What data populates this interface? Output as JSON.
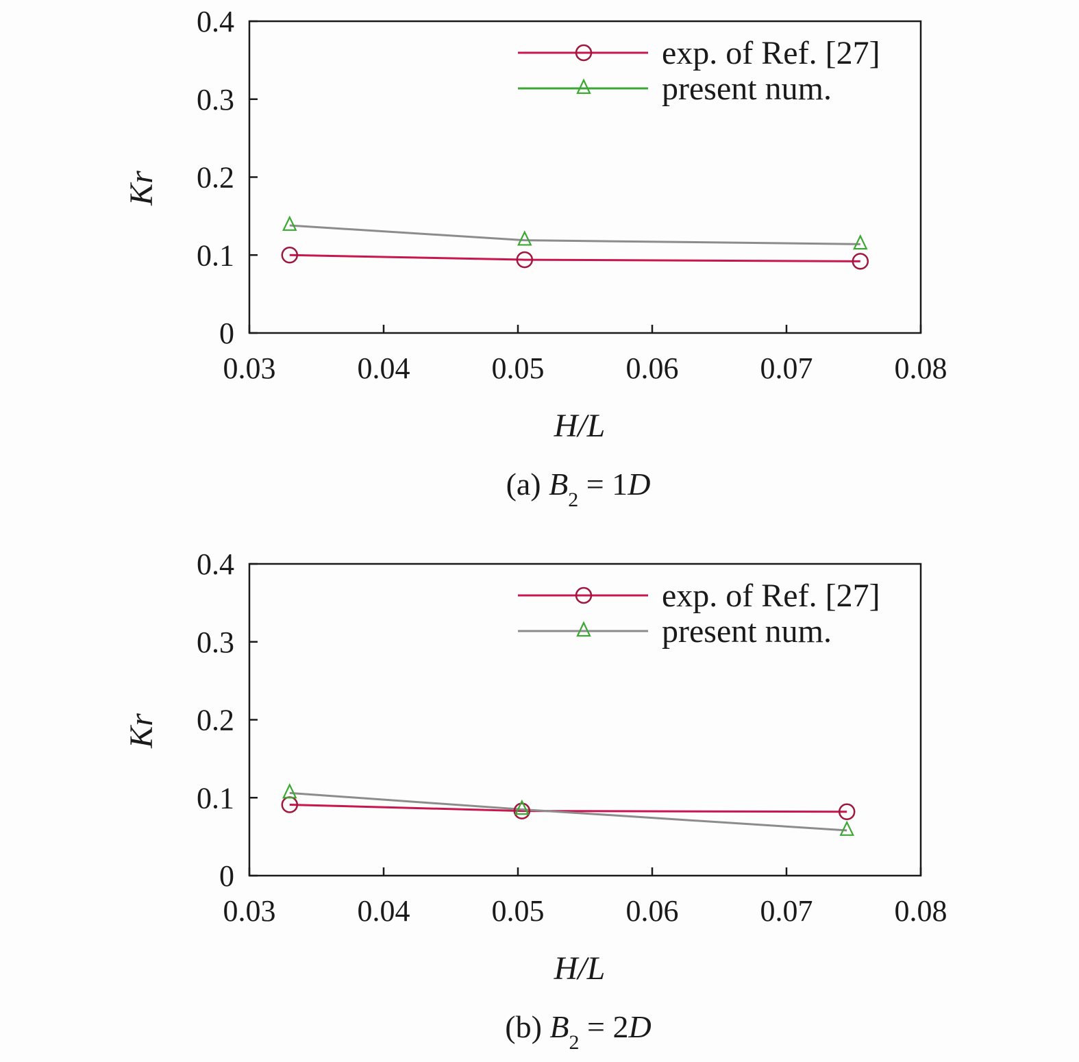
{
  "chart_data": [
    {
      "type": "line",
      "caption": {
        "prefix": "(a) ",
        "var": "B",
        "sub": "2",
        "eq": " = 1",
        "unit": "D"
      },
      "xlabel": "H/L",
      "ylabel": "Kr",
      "xlim": [
        0.03,
        0.08
      ],
      "ylim": [
        0,
        0.4
      ],
      "xticks": [
        "0.03",
        "0.04",
        "0.05",
        "0.06",
        "0.07",
        "0.08"
      ],
      "yticks": [
        "0",
        "0.1",
        "0.2",
        "0.3",
        "0.4"
      ],
      "grid": false,
      "legend_position": "top-right",
      "series": [
        {
          "name": "exp. of Ref. [27]",
          "marker": "circle",
          "color": "#c8174e",
          "marker_color": "#a0173e",
          "x": [
            0.033,
            0.0505,
            0.0755
          ],
          "y": [
            0.1,
            0.094,
            0.092
          ]
        },
        {
          "name": "present num.",
          "marker": "triangle",
          "color": "#8c8c8c",
          "marker_color": "#3aa832",
          "x": [
            0.033,
            0.0505,
            0.0755
          ],
          "y": [
            0.138,
            0.119,
            0.114
          ]
        }
      ]
    },
    {
      "type": "line",
      "caption": {
        "prefix": "(b) ",
        "var": "B",
        "sub": "2",
        "eq": " = 2",
        "unit": "D"
      },
      "xlabel": "H/L",
      "ylabel": "Kr",
      "xlim": [
        0.03,
        0.08
      ],
      "ylim": [
        0,
        0.4
      ],
      "xticks": [
        "0.03",
        "0.04",
        "0.05",
        "0.06",
        "0.07",
        "0.08"
      ],
      "yticks": [
        "0",
        "0.1",
        "0.2",
        "0.3",
        "0.4"
      ],
      "grid": false,
      "legend_position": "top-right",
      "series": [
        {
          "name": "exp. of Ref. [27]",
          "marker": "circle",
          "color": "#c8174e",
          "marker_color": "#a0173e",
          "x": [
            0.033,
            0.0503,
            0.0745
          ],
          "y": [
            0.091,
            0.083,
            0.082
          ]
        },
        {
          "name": "present num.",
          "marker": "triangle",
          "color": "#8c8c8c",
          "marker_color": "#3aa832",
          "x": [
            0.033,
            0.0503,
            0.0745
          ],
          "y": [
            0.106,
            0.085,
            0.058
          ]
        }
      ]
    }
  ]
}
